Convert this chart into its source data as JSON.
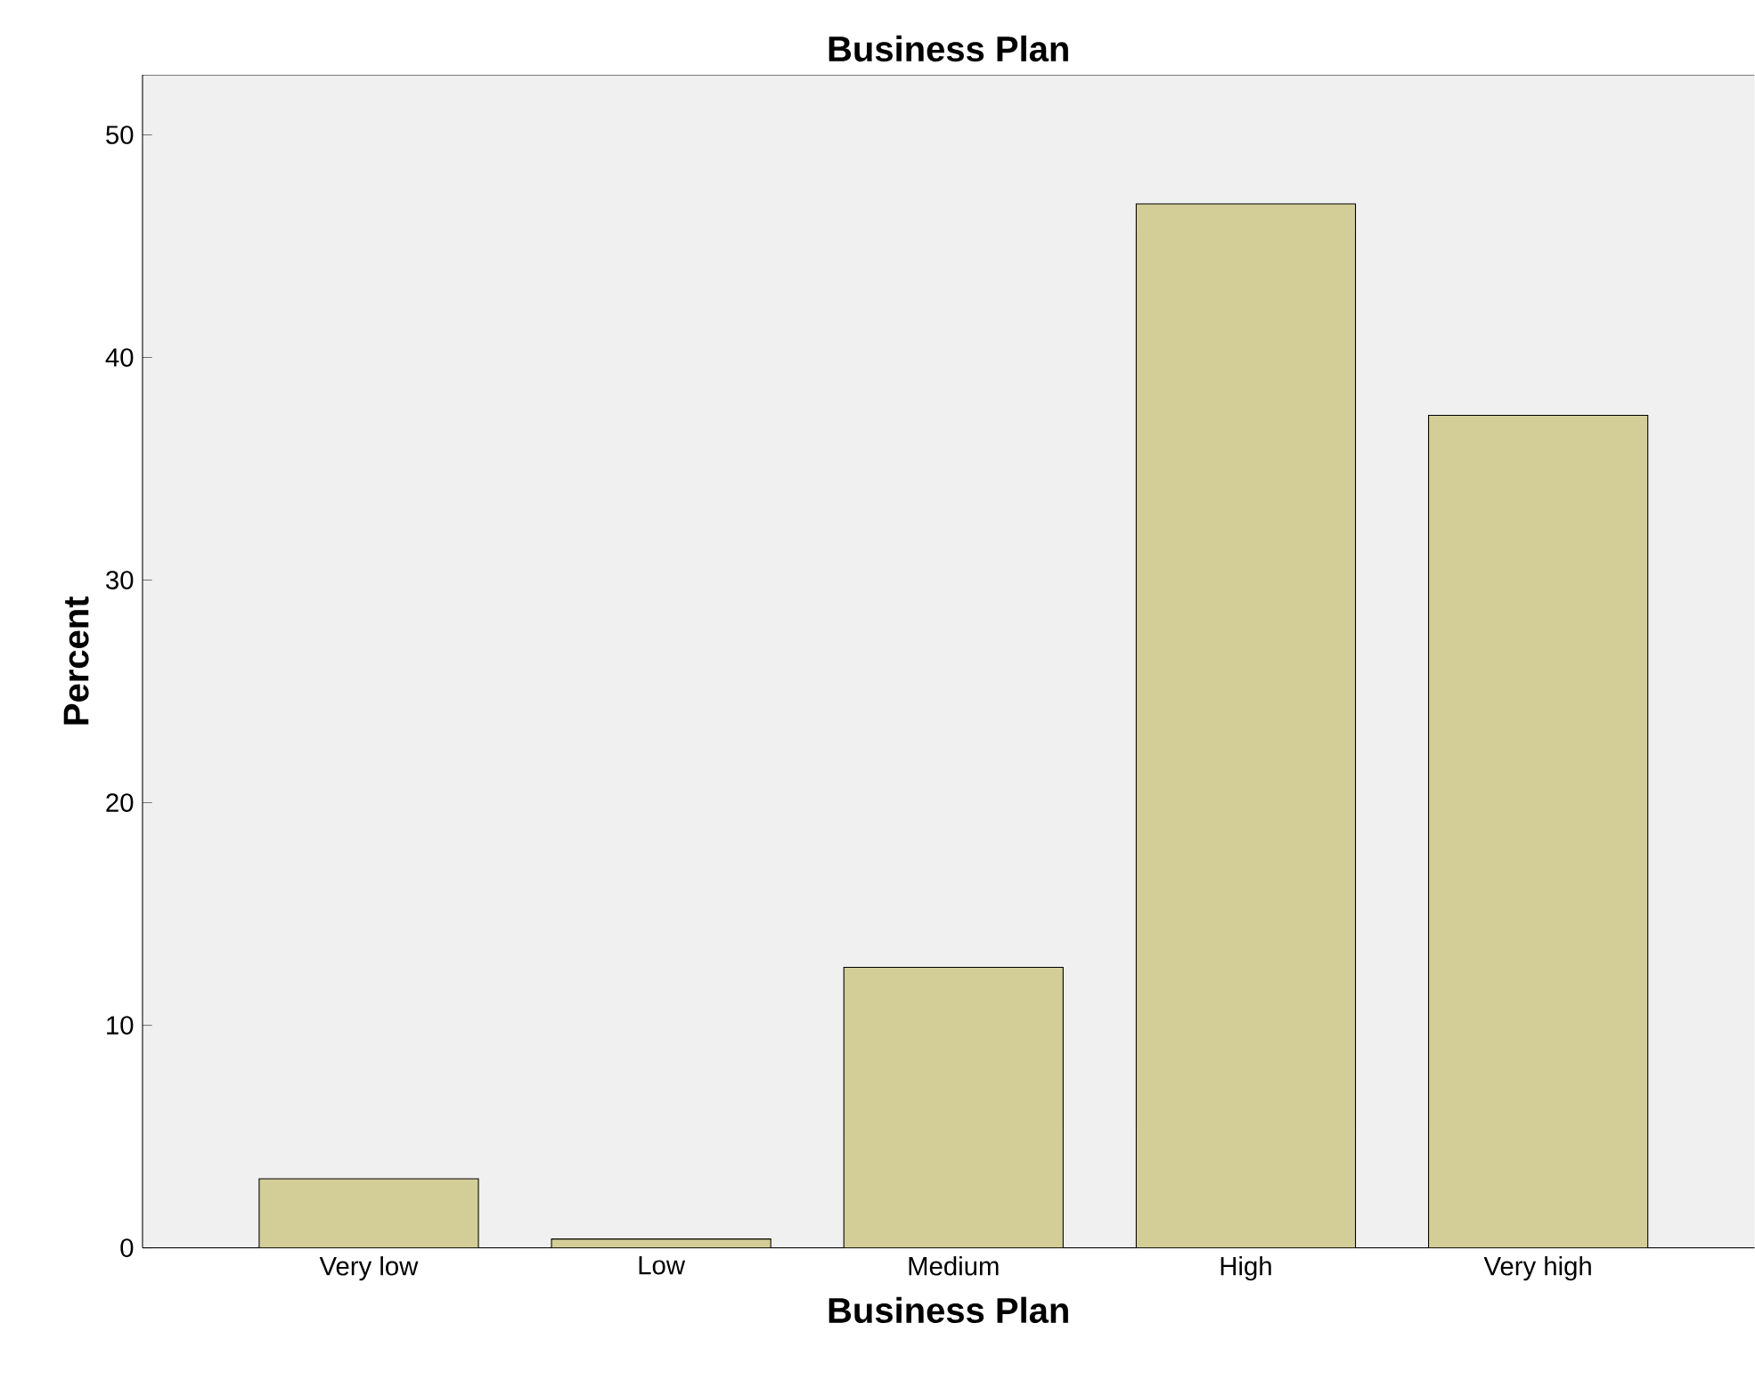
{
  "chart_data": {
    "type": "bar",
    "title": "Business Plan",
    "xlabel": "Business Plan",
    "ylabel": "Percent",
    "categories": [
      "Very low",
      "Low",
      "Medium",
      "High",
      "Very high"
    ],
    "values": [
      3.1,
      0.4,
      12.6,
      46.9,
      37.4
    ],
    "color": "#d3ce98",
    "ylim": [
      0,
      52.7
    ],
    "yticks": [
      0,
      10,
      20,
      30,
      40,
      50
    ],
    "grid": false
  }
}
